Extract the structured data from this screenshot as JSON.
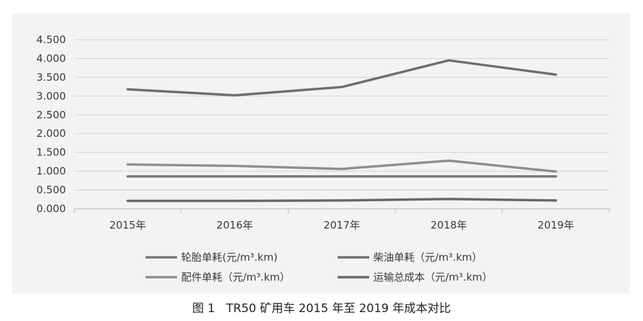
{
  "caption": "图 1   TR50 矿用车 2015 年至 2019 年成本对比",
  "chart_data": {
    "type": "line",
    "categories": [
      "2015年",
      "2016年",
      "2017年",
      "2018年",
      "2019年"
    ],
    "ylim": [
      0,
      4.5
    ],
    "yticks": [
      "0.000",
      "0.500",
      "1.000",
      "1.500",
      "2.000",
      "2.500",
      "3.000",
      "3.500",
      "4.000",
      "4.500"
    ],
    "grid": true,
    "legend_position": "bottom",
    "series": [
      {
        "name": "轮胎单耗(元/m³.km)",
        "values": [
          0.86,
          0.86,
          0.86,
          0.86,
          0.86
        ],
        "color": "#777777"
      },
      {
        "name": "柴油单耗（元/m³.km）",
        "values": [
          3.18,
          3.02,
          3.24,
          3.95,
          3.57
        ],
        "color": "#6e6e6e"
      },
      {
        "name": "配件单耗（元/m³.km）",
        "values": [
          1.18,
          1.14,
          1.06,
          1.28,
          0.99
        ],
        "color": "#8e8e8e"
      },
      {
        "name": "运输总成本（元/m³.km）",
        "values": [
          0.21,
          0.21,
          0.22,
          0.26,
          0.22
        ],
        "color": "#666666"
      }
    ]
  }
}
